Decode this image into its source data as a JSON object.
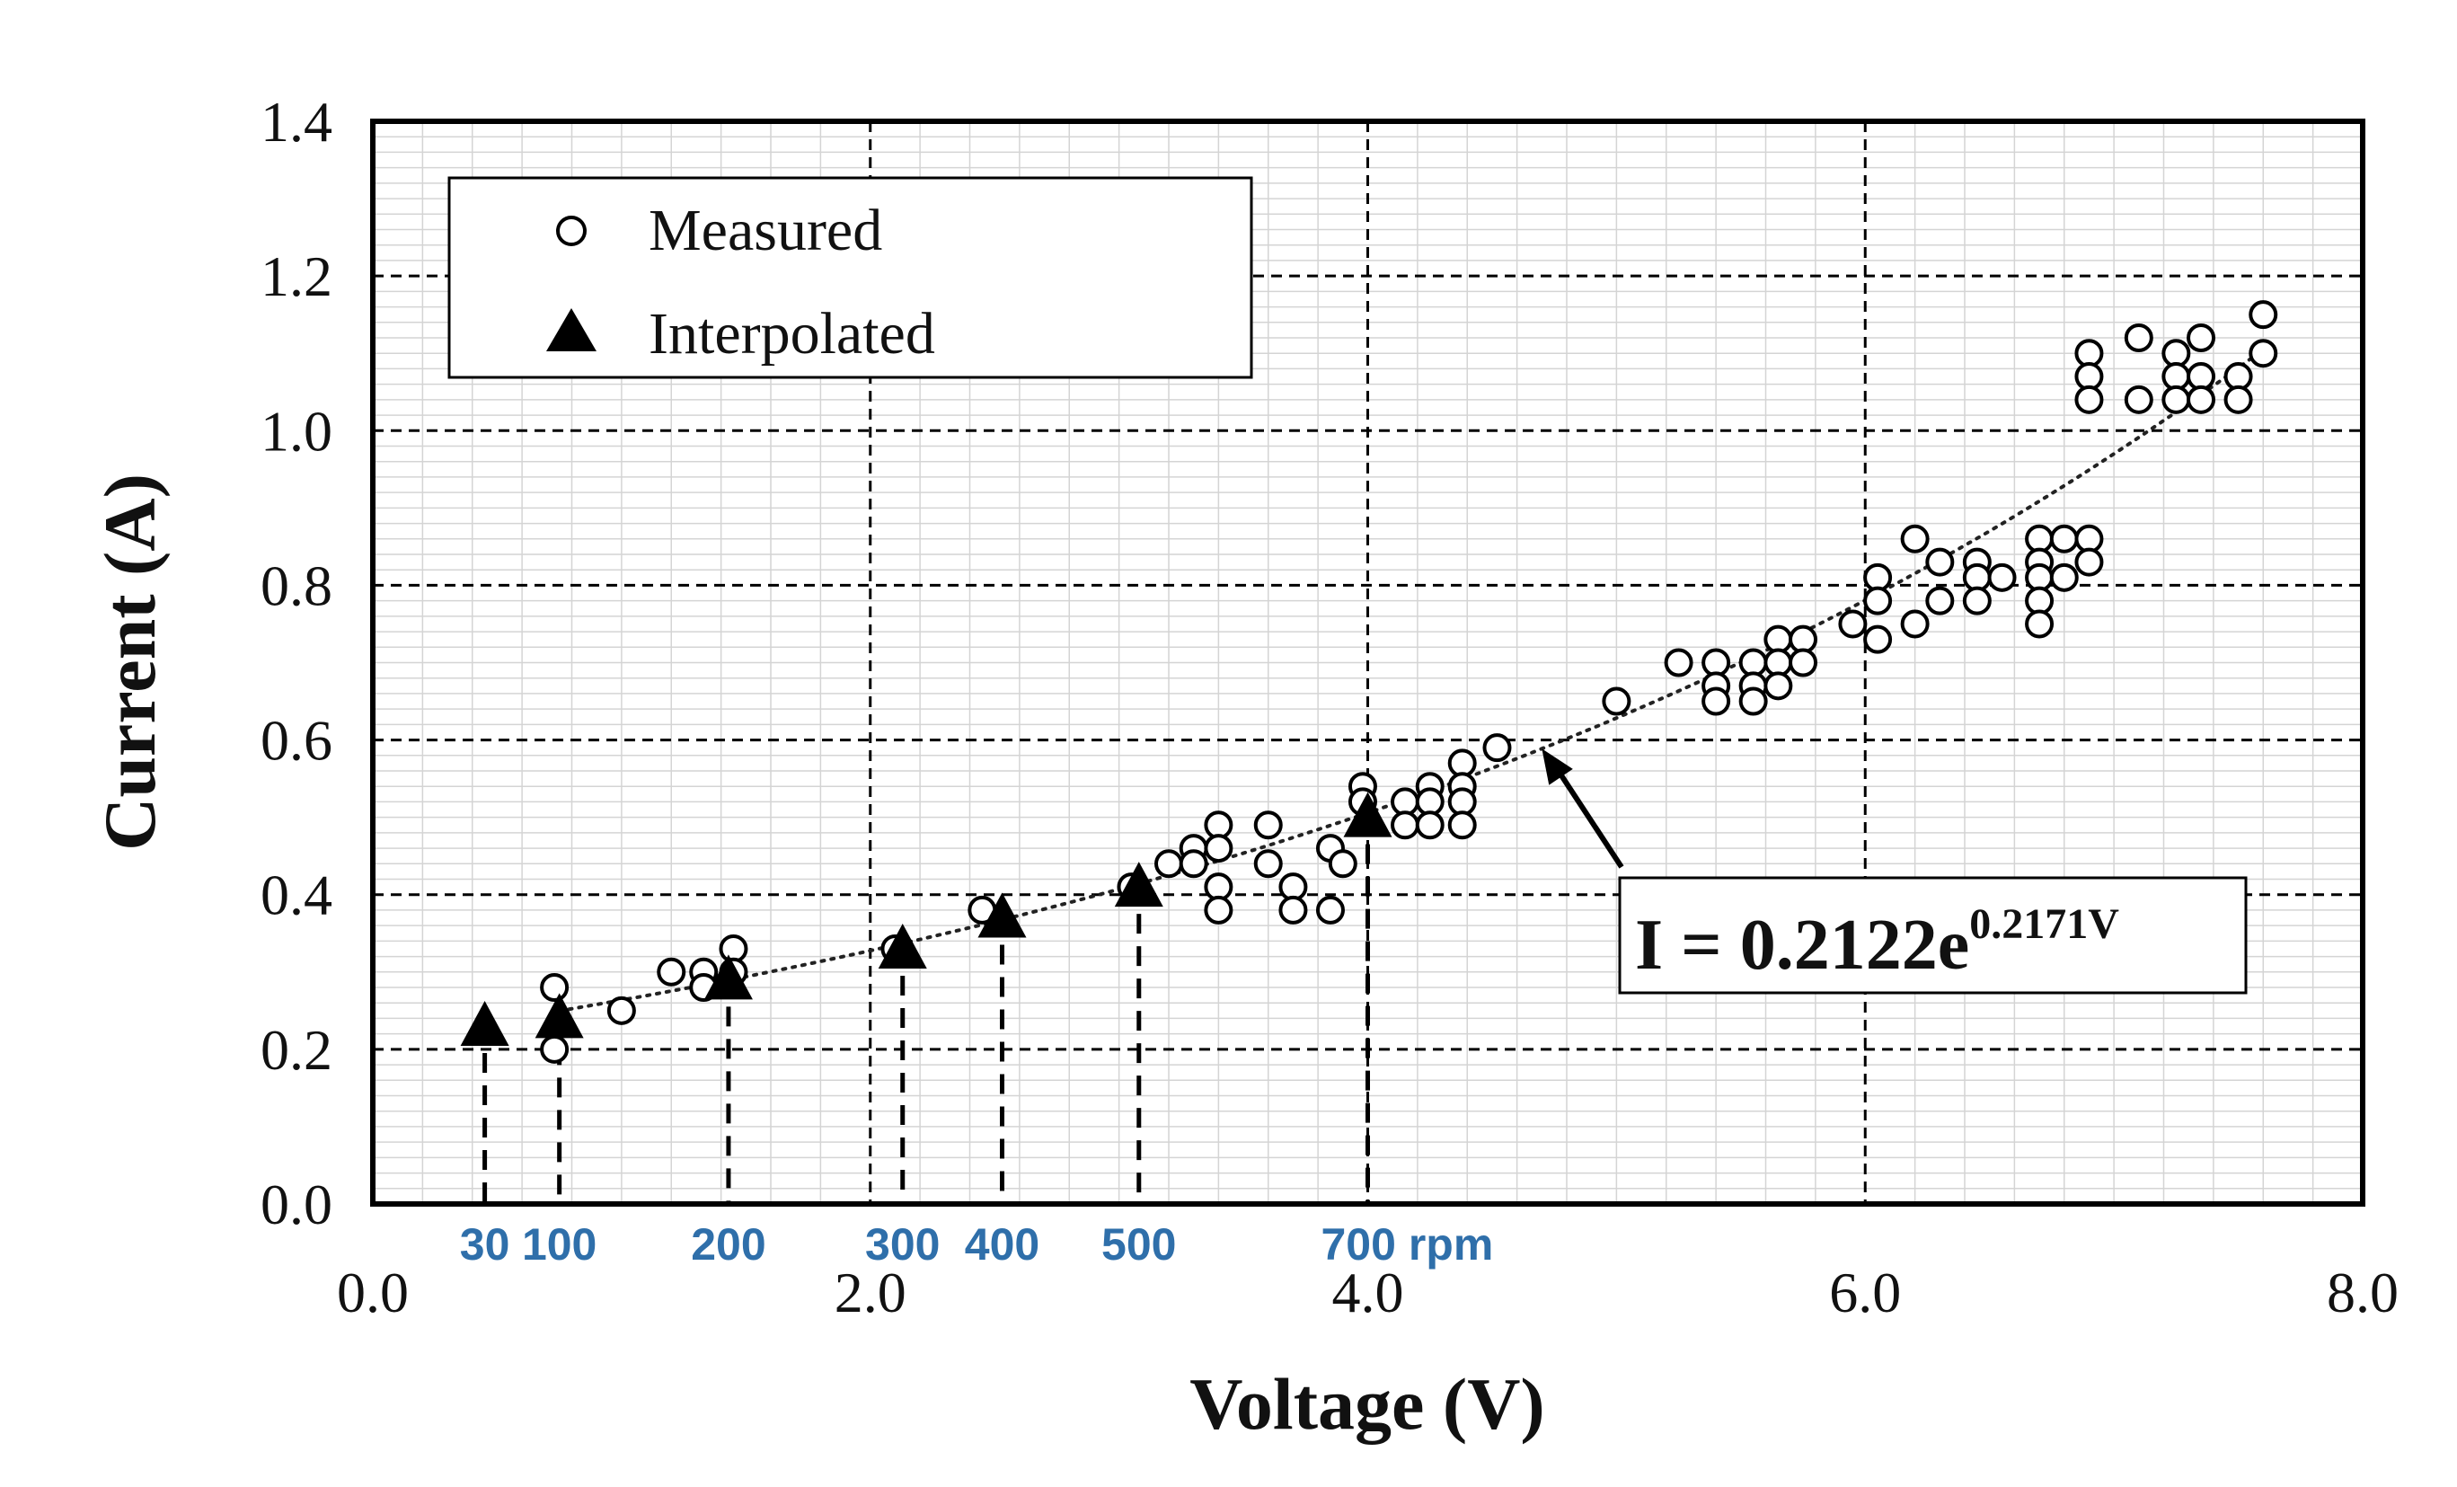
{
  "chart_data": {
    "type": "scatter",
    "title": "",
    "xlabel": "Voltage (V)",
    "ylabel": "Current (A)",
    "xlim": [
      0.0,
      8.0
    ],
    "ylim": [
      0.0,
      1.4
    ],
    "x_ticks": [
      "0.0",
      "2.0",
      "4.0",
      "6.0",
      "8.0"
    ],
    "y_ticks": [
      "0.0",
      "0.2",
      "0.4",
      "0.6",
      "0.8",
      "1.0",
      "1.2",
      "1.4"
    ],
    "grid": true,
    "legend": {
      "position": "top-left",
      "entries": [
        {
          "label": "Measured",
          "marker": "open-circle"
        },
        {
          "label": "Interpolated",
          "marker": "filled-triangle"
        }
      ]
    },
    "fit": {
      "label_main": "I = 0.2122e",
      "label_exp": "0.2171V",
      "a": 0.2122,
      "b": 0.2171,
      "x_range": [
        0.75,
        7.6
      ],
      "arrow_target_x": 4.7
    },
    "series": [
      {
        "name": "Measured",
        "points": [
          [
            0.73,
            0.28
          ],
          [
            0.73,
            0.2
          ],
          [
            1.0,
            0.25
          ],
          [
            1.2,
            0.3
          ],
          [
            1.33,
            0.3
          ],
          [
            1.33,
            0.28
          ],
          [
            1.45,
            0.33
          ],
          [
            1.45,
            0.3
          ],
          [
            2.1,
            0.33
          ],
          [
            2.45,
            0.38
          ],
          [
            3.05,
            0.41
          ],
          [
            3.2,
            0.44
          ],
          [
            3.3,
            0.46
          ],
          [
            3.3,
            0.44
          ],
          [
            3.4,
            0.49
          ],
          [
            3.4,
            0.46
          ],
          [
            3.4,
            0.41
          ],
          [
            3.4,
            0.38
          ],
          [
            3.6,
            0.49
          ],
          [
            3.6,
            0.44
          ],
          [
            3.7,
            0.41
          ],
          [
            3.7,
            0.38
          ],
          [
            3.85,
            0.46
          ],
          [
            3.85,
            0.38
          ],
          [
            3.9,
            0.44
          ],
          [
            3.98,
            0.54
          ],
          [
            3.98,
            0.52
          ],
          [
            4.15,
            0.52
          ],
          [
            4.15,
            0.49
          ],
          [
            4.25,
            0.54
          ],
          [
            4.25,
            0.52
          ],
          [
            4.25,
            0.49
          ],
          [
            4.38,
            0.57
          ],
          [
            4.38,
            0.54
          ],
          [
            4.38,
            0.52
          ],
          [
            4.38,
            0.49
          ],
          [
            4.52,
            0.59
          ],
          [
            5.0,
            0.65
          ],
          [
            5.25,
            0.7
          ],
          [
            5.4,
            0.7
          ],
          [
            5.4,
            0.67
          ],
          [
            5.4,
            0.65
          ],
          [
            5.55,
            0.7
          ],
          [
            5.55,
            0.67
          ],
          [
            5.55,
            0.65
          ],
          [
            5.65,
            0.73
          ],
          [
            5.65,
            0.7
          ],
          [
            5.65,
            0.67
          ],
          [
            5.75,
            0.73
          ],
          [
            5.75,
            0.7
          ],
          [
            5.95,
            0.75
          ],
          [
            6.05,
            0.81
          ],
          [
            6.05,
            0.78
          ],
          [
            6.05,
            0.73
          ],
          [
            6.2,
            0.86
          ],
          [
            6.2,
            0.75
          ],
          [
            6.3,
            0.83
          ],
          [
            6.3,
            0.78
          ],
          [
            6.45,
            0.83
          ],
          [
            6.45,
            0.81
          ],
          [
            6.45,
            0.78
          ],
          [
            6.55,
            0.81
          ],
          [
            6.7,
            0.86
          ],
          [
            6.7,
            0.83
          ],
          [
            6.7,
            0.81
          ],
          [
            6.7,
            0.78
          ],
          [
            6.7,
            0.75
          ],
          [
            6.8,
            0.86
          ],
          [
            6.8,
            0.81
          ],
          [
            6.9,
            0.86
          ],
          [
            6.9,
            0.83
          ],
          [
            6.9,
            1.1
          ],
          [
            6.9,
            1.07
          ],
          [
            6.9,
            1.04
          ],
          [
            7.1,
            1.12
          ],
          [
            7.1,
            1.04
          ],
          [
            7.25,
            1.1
          ],
          [
            7.25,
            1.07
          ],
          [
            7.25,
            1.04
          ],
          [
            7.35,
            1.12
          ],
          [
            7.35,
            1.07
          ],
          [
            7.35,
            1.04
          ],
          [
            7.5,
            1.07
          ],
          [
            7.5,
            1.04
          ],
          [
            7.6,
            1.15
          ],
          [
            7.6,
            1.1
          ]
        ]
      },
      {
        "name": "Interpolated",
        "points": [
          [
            0.45,
            0.23
          ],
          [
            0.75,
            0.24
          ],
          [
            1.43,
            0.29
          ],
          [
            2.13,
            0.33
          ],
          [
            2.53,
            0.37
          ],
          [
            3.08,
            0.41
          ],
          [
            4.0,
            0.5
          ]
        ]
      }
    ],
    "rpm_annotations": [
      {
        "label": "30",
        "x": 0.45
      },
      {
        "label": "100",
        "x": 0.75
      },
      {
        "label": "200",
        "x": 1.43
      },
      {
        "label": "300",
        "x": 2.13
      },
      {
        "label": "400",
        "x": 2.53
      },
      {
        "label": "500",
        "x": 3.08
      },
      {
        "label": "700 rpm",
        "x": 4.0
      }
    ]
  }
}
